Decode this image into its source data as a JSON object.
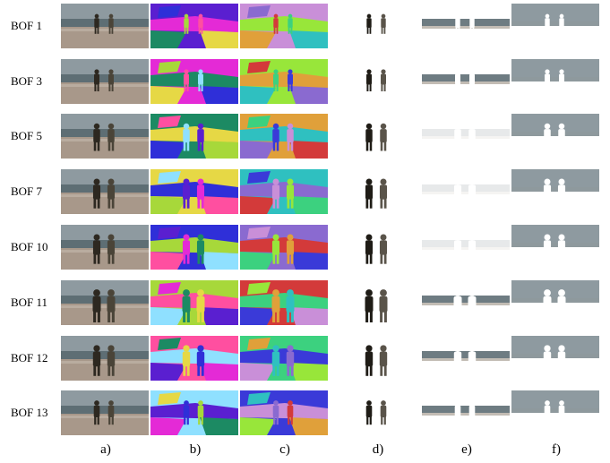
{
  "figure": {
    "row_labels": [
      "BOF 1",
      "BOF 3",
      "BOF 5",
      "BOF 7",
      "BOF 10",
      "BOF 11",
      "BOF 12",
      "BOF 13"
    ],
    "column_labels": [
      "a)",
      "b)",
      "c)",
      "d)",
      "e)",
      "f)"
    ],
    "panel_types": [
      "video-frame",
      "superpixel-segmentation-random-colors",
      "superpixel-segmentation-random-colors",
      "foreground-mask-people",
      "background-mask-sand",
      "background-mask-sea-sky"
    ],
    "colors": {
      "sky": "#8e9aa0",
      "sea": "#5e6e74",
      "sand": "#a8988a",
      "person": "#2d2820",
      "seg_b": [
        "#5a1fd0",
        "#e42ad6",
        "#1c8a63",
        "#e6d845",
        "#2f2fd8",
        "#a7d83a",
        "#ff4fa0",
        "#8fe0ff"
      ],
      "seg_c": [
        "#d33a3a",
        "#3cd17f",
        "#3a3ad8",
        "#c98fd8",
        "#98e63a",
        "#e0a03a",
        "#2fc0c0",
        "#8a6ad0"
      ]
    }
  }
}
